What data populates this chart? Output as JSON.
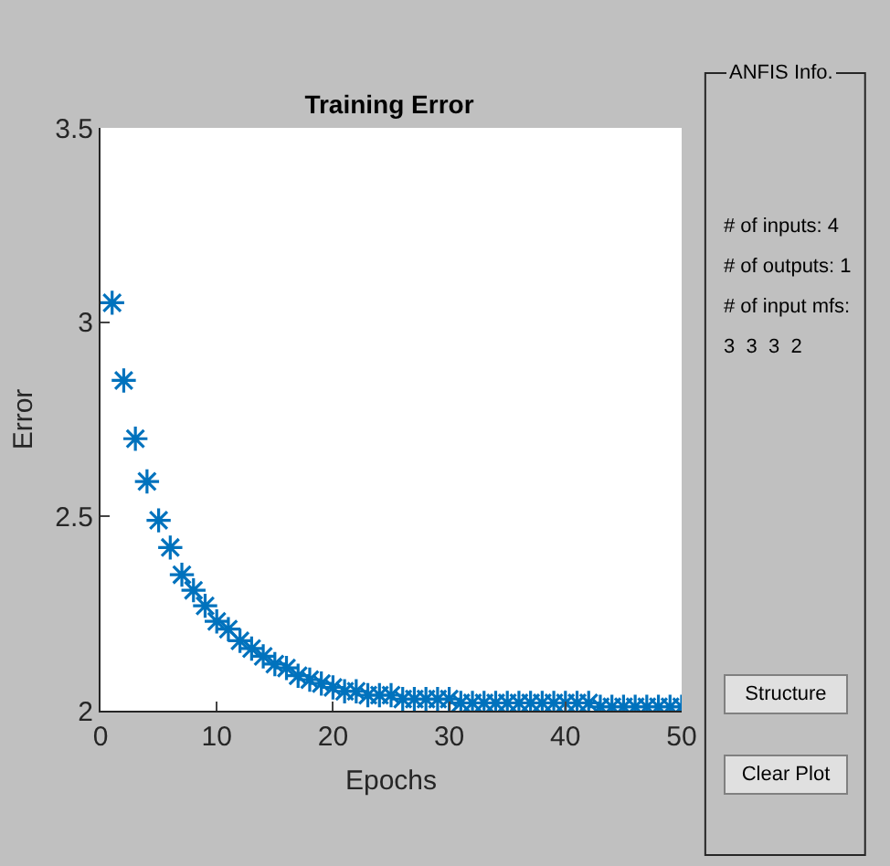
{
  "chart_data": {
    "type": "scatter",
    "title": "Training Error",
    "xlabel": "Epochs",
    "ylabel": "Error",
    "x": [
      1,
      2,
      3,
      4,
      5,
      6,
      7,
      8,
      9,
      10,
      11,
      12,
      13,
      14,
      15,
      16,
      17,
      18,
      19,
      20,
      21,
      22,
      23,
      24,
      25,
      26,
      27,
      28,
      29,
      30,
      31,
      32,
      33,
      34,
      35,
      36,
      37,
      38,
      39,
      40,
      41,
      42,
      43,
      44,
      45,
      46,
      47,
      48,
      49,
      50
    ],
    "series": [
      {
        "color": "#0072bd",
        "values": [
          3.05,
          2.85,
          2.7,
          2.59,
          2.49,
          2.42,
          2.35,
          2.31,
          2.27,
          2.23,
          2.21,
          2.18,
          2.16,
          2.14,
          2.12,
          2.11,
          2.09,
          2.08,
          2.07,
          2.06,
          2.05,
          2.05,
          2.04,
          2.04,
          2.04,
          2.03,
          2.03,
          2.03,
          2.03,
          2.03,
          2.02,
          2.02,
          2.02,
          2.02,
          2.02,
          2.02,
          2.02,
          2.02,
          2.02,
          2.02,
          2.02,
          2.02,
          2.01,
          2.01,
          2.01,
          2.01,
          2.01,
          2.01,
          2.01,
          2.01
        ]
      }
    ],
    "xlim": [
      0,
      50
    ],
    "xticks": [
      0,
      10,
      20,
      30,
      40,
      50
    ],
    "ylim": [
      2,
      3.5
    ],
    "yticks": [
      2,
      2.5,
      3,
      3.5
    ],
    "marker": "cross",
    "annotations": [
      "ANFIS Info.",
      "# of inputs: 4",
      "# of outputs: 1",
      "# of input mfs:",
      "3  3  3  2",
      "Structure",
      "Clear Plot"
    ]
  }
}
